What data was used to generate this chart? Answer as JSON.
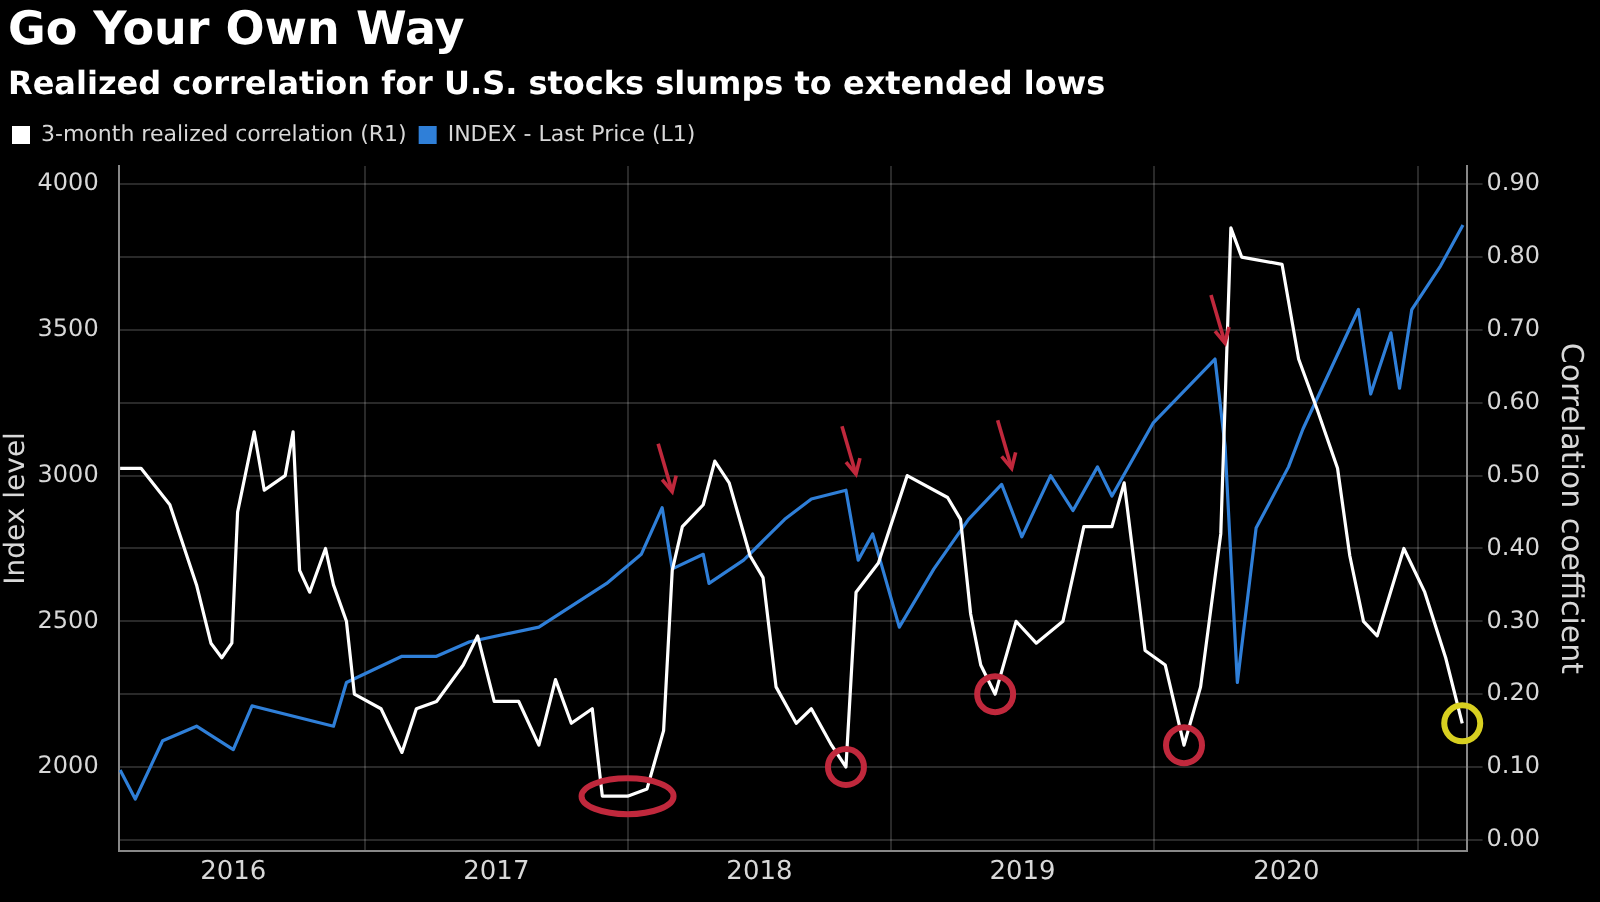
{
  "chart_data": {
    "type": "line",
    "title": "Go Your Own Way",
    "subtitle": "Realized correlation for U.S. stocks slumps to extended lows",
    "ylabel": "Index level",
    "y2label": "Correlation coefficient",
    "series": [
      {
        "name": "3-month realized correlation (R1)",
        "color": "#ffffff",
        "axis": "y2",
        "x": [
          "2016-01-27",
          "2016-02-25",
          "2016-04-05",
          "2016-05-12",
          "2016-06-01",
          "2016-06-16",
          "2016-06-30",
          "2016-07-08",
          "2016-07-31",
          "2016-08-14",
          "2016-09-12",
          "2016-09-23",
          "2016-10-02",
          "2016-10-16",
          "2016-11-07",
          "2016-11-18",
          "2016-12-06",
          "2016-12-17",
          "2017-01-23",
          "2017-02-21",
          "2017-03-13",
          "2017-04-10",
          "2017-05-17",
          "2017-06-06",
          "2017-06-29",
          "2017-08-02",
          "2017-08-30",
          "2017-09-22",
          "2017-10-14",
          "2017-11-12",
          "2017-11-26",
          "2017-12-31",
          "2018-01-27",
          "2018-02-19",
          "2018-03-03",
          "2018-03-17",
          "2018-04-15",
          "2018-05-01",
          "2018-05-21",
          "2018-06-19",
          "2018-07-07",
          "2018-07-25",
          "2018-08-22",
          "2018-09-12",
          "2018-10-10",
          "2018-10-30",
          "2018-11-13",
          "2018-12-14",
          "2019-01-23",
          "2019-03-20",
          "2019-04-07",
          "2019-04-21",
          "2019-05-05",
          "2019-05-25",
          "2019-06-23",
          "2019-07-21",
          "2019-08-27",
          "2019-09-25",
          "2019-11-03",
          "2019-11-20",
          "2019-12-19",
          "2020-01-16",
          "2020-02-11",
          "2020-03-05",
          "2020-04-02",
          "2020-04-16",
          "2020-05-01",
          "2020-06-26",
          "2020-07-19",
          "2020-08-14",
          "2020-09-11",
          "2020-09-28",
          "2020-10-17",
          "2020-11-05",
          "2020-12-12",
          "2021-01-10",
          "2021-02-08",
          "2021-03-03"
        ],
        "values": [
          0.51,
          0.51,
          0.46,
          0.35,
          0.27,
          0.25,
          0.27,
          0.45,
          0.56,
          0.48,
          0.5,
          0.56,
          0.37,
          0.34,
          0.4,
          0.35,
          0.3,
          0.2,
          0.18,
          0.12,
          0.18,
          0.19,
          0.24,
          0.28,
          0.19,
          0.19,
          0.13,
          0.22,
          0.16,
          0.18,
          0.06,
          0.06,
          0.07,
          0.15,
          0.37,
          0.43,
          0.46,
          0.52,
          0.49,
          0.39,
          0.36,
          0.21,
          0.16,
          0.18,
          0.13,
          0.1,
          0.34,
          0.38,
          0.5,
          0.47,
          0.44,
          0.31,
          0.24,
          0.2,
          0.3,
          0.27,
          0.3,
          0.43,
          0.43,
          0.49,
          0.26,
          0.24,
          0.13,
          0.21,
          0.42,
          0.84,
          0.8,
          0.79,
          0.66,
          0.59,
          0.51,
          0.39,
          0.3,
          0.28,
          0.4,
          0.34,
          0.25,
          0.16
        ]
      },
      {
        "name": "INDEX - Last Price (L1)",
        "color": "#2f7fd8",
        "axis": "y",
        "x": [
          "2016-01-27",
          "2016-02-17",
          "2016-03-26",
          "2016-05-12",
          "2016-07-02",
          "2016-07-28",
          "2016-11-18",
          "2016-12-06",
          "2017-02-21",
          "2017-04-10",
          "2017-05-26",
          "2017-08-30",
          "2017-12-02",
          "2018-01-19",
          "2018-02-17",
          "2018-03-03",
          "2018-04-15",
          "2018-04-23",
          "2018-06-10",
          "2018-08-06",
          "2018-09-12",
          "2018-10-30",
          "2018-11-16",
          "2018-12-06",
          "2019-01-12",
          "2019-03-01",
          "2019-04-18",
          "2019-06-03",
          "2019-07-01",
          "2019-08-10",
          "2019-09-10",
          "2019-10-14",
          "2019-11-03",
          "2019-12-30",
          "2020-03-25",
          "2020-04-08",
          "2020-04-25",
          "2020-05-21",
          "2020-07-05",
          "2020-07-25",
          "2020-10-10",
          "2020-10-27",
          "2020-11-24",
          "2020-12-06",
          "2020-12-23",
          "2021-02-01",
          "2021-03-04"
        ],
        "values": [
          1990,
          1890,
          2090,
          2140,
          2060,
          2210,
          2140,
          2290,
          2380,
          2380,
          2430,
          2480,
          2630,
          2730,
          2890,
          2680,
          2730,
          2630,
          2710,
          2850,
          2920,
          2950,
          2710,
          2800,
          2480,
          2680,
          2850,
          2970,
          2790,
          3000,
          2880,
          3030,
          2930,
          3180,
          3400,
          3100,
          2290,
          2820,
          3030,
          3160,
          3570,
          3280,
          3490,
          3300,
          3570,
          3720,
          3860
        ]
      }
    ],
    "xlim": [
      "2016-01-25",
      "2021-03-09"
    ],
    "xticks": [
      {
        "value": "2016-07-02",
        "label": "2016"
      },
      {
        "value": "2017-01-01",
        "label": null
      },
      {
        "value": "2017-07-02",
        "label": "2017"
      },
      {
        "value": "2018-01-01",
        "label": null
      },
      {
        "value": "2018-07-02",
        "label": "2018"
      },
      {
        "value": "2019-01-01",
        "label": null
      },
      {
        "value": "2019-07-02",
        "label": "2019"
      },
      {
        "value": "2020-01-01",
        "label": null
      },
      {
        "value": "2020-07-02",
        "label": "2020"
      },
      {
        "value": "2021-01-01",
        "label": null
      }
    ],
    "ylim": [
      1712.5,
      4062.5
    ],
    "yticks": [
      2000,
      2500,
      3000,
      3500,
      4000
    ],
    "y2lim": [
      -0.015,
      0.925
    ],
    "y2ticks": [
      {
        "value": 0,
        "label": "0.00"
      },
      {
        "value": 0.1,
        "label": "0.10"
      },
      {
        "value": 0.2,
        "label": "0.20"
      },
      {
        "value": 0.3,
        "label": "0.30"
      },
      {
        "value": 0.4,
        "label": "0.40"
      },
      {
        "value": 0.5,
        "label": "0.50"
      },
      {
        "value": 0.6,
        "label": "0.60"
      },
      {
        "value": 0.7,
        "label": "0.70"
      },
      {
        "value": 0.8,
        "label": "0.80"
      },
      {
        "value": 0.9,
        "label": "0.90"
      }
    ],
    "grid": true,
    "legend": "top left",
    "marker": "none",
    "line_style": "solid"
  }
}
